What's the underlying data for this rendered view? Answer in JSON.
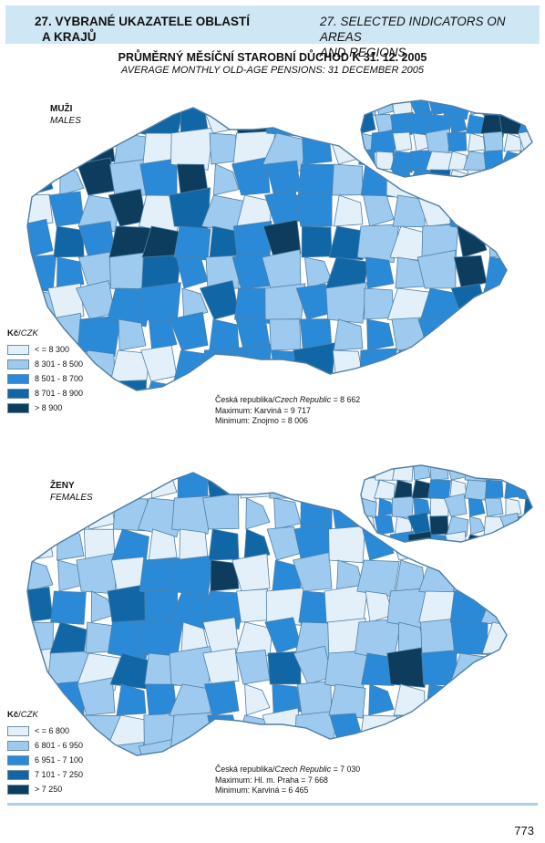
{
  "header": {
    "left_line1": "27. VYBRANÉ UKAZATELE OBLASTÍ",
    "left_line2": "A KRAJŮ",
    "right_line1": "27. SELECTED INDICATORS ON AREAS",
    "right_line2": "AND REGIONS"
  },
  "title": {
    "cz": "PRŮMĚRNÝ MĚSÍČNÍ STAROBNÍ DŮCHOD K 31. 12. 2005",
    "en": "AVERAGE MONTHLY OLD-AGE PENSIONS: 31 DECEMBER 2005"
  },
  "colors": {
    "class1": "#e3f0f9",
    "class2": "#9dcaee",
    "class3": "#2a8ad8",
    "class4": "#1167a6",
    "class5": "#0d3c5c",
    "border": "#4f7fa5"
  },
  "maps": {
    "males": {
      "label_cz": "MUŽI",
      "label_en": "MALES",
      "legend_unit_cz": "Kč",
      "legend_unit_en": "CZK",
      "legend": [
        "< = 8 300",
        "8 301 - 8 500",
        "8 501 - 8 700",
        "8 701 - 8 900",
        "> 8 900"
      ],
      "stats": {
        "cr_cz": "Česká republika/",
        "cr_en": "Czech Republic",
        "cr_value": " = 8 662",
        "max": "Maximum: Karviná = 9 717",
        "min": "Minimum: Znojmo = 8 006"
      }
    },
    "females": {
      "label_cz": "ŽENY",
      "label_en": "FEMALES",
      "legend_unit_cz": "Kč",
      "legend_unit_en": "CZK",
      "legend": [
        "< = 6 800",
        "6 801 - 6 950",
        "6 951 - 7 100",
        "7 101 - 7 250",
        "> 7 250"
      ],
      "stats": {
        "cr_cz": "Česká republika/",
        "cr_en": "Czech Republic",
        "cr_value": " = 7 030",
        "max": "Maximum: Hl. m. Praha = 7 668",
        "min": "Minimum: Karviná = 6 465"
      }
    }
  },
  "page_number": "773"
}
